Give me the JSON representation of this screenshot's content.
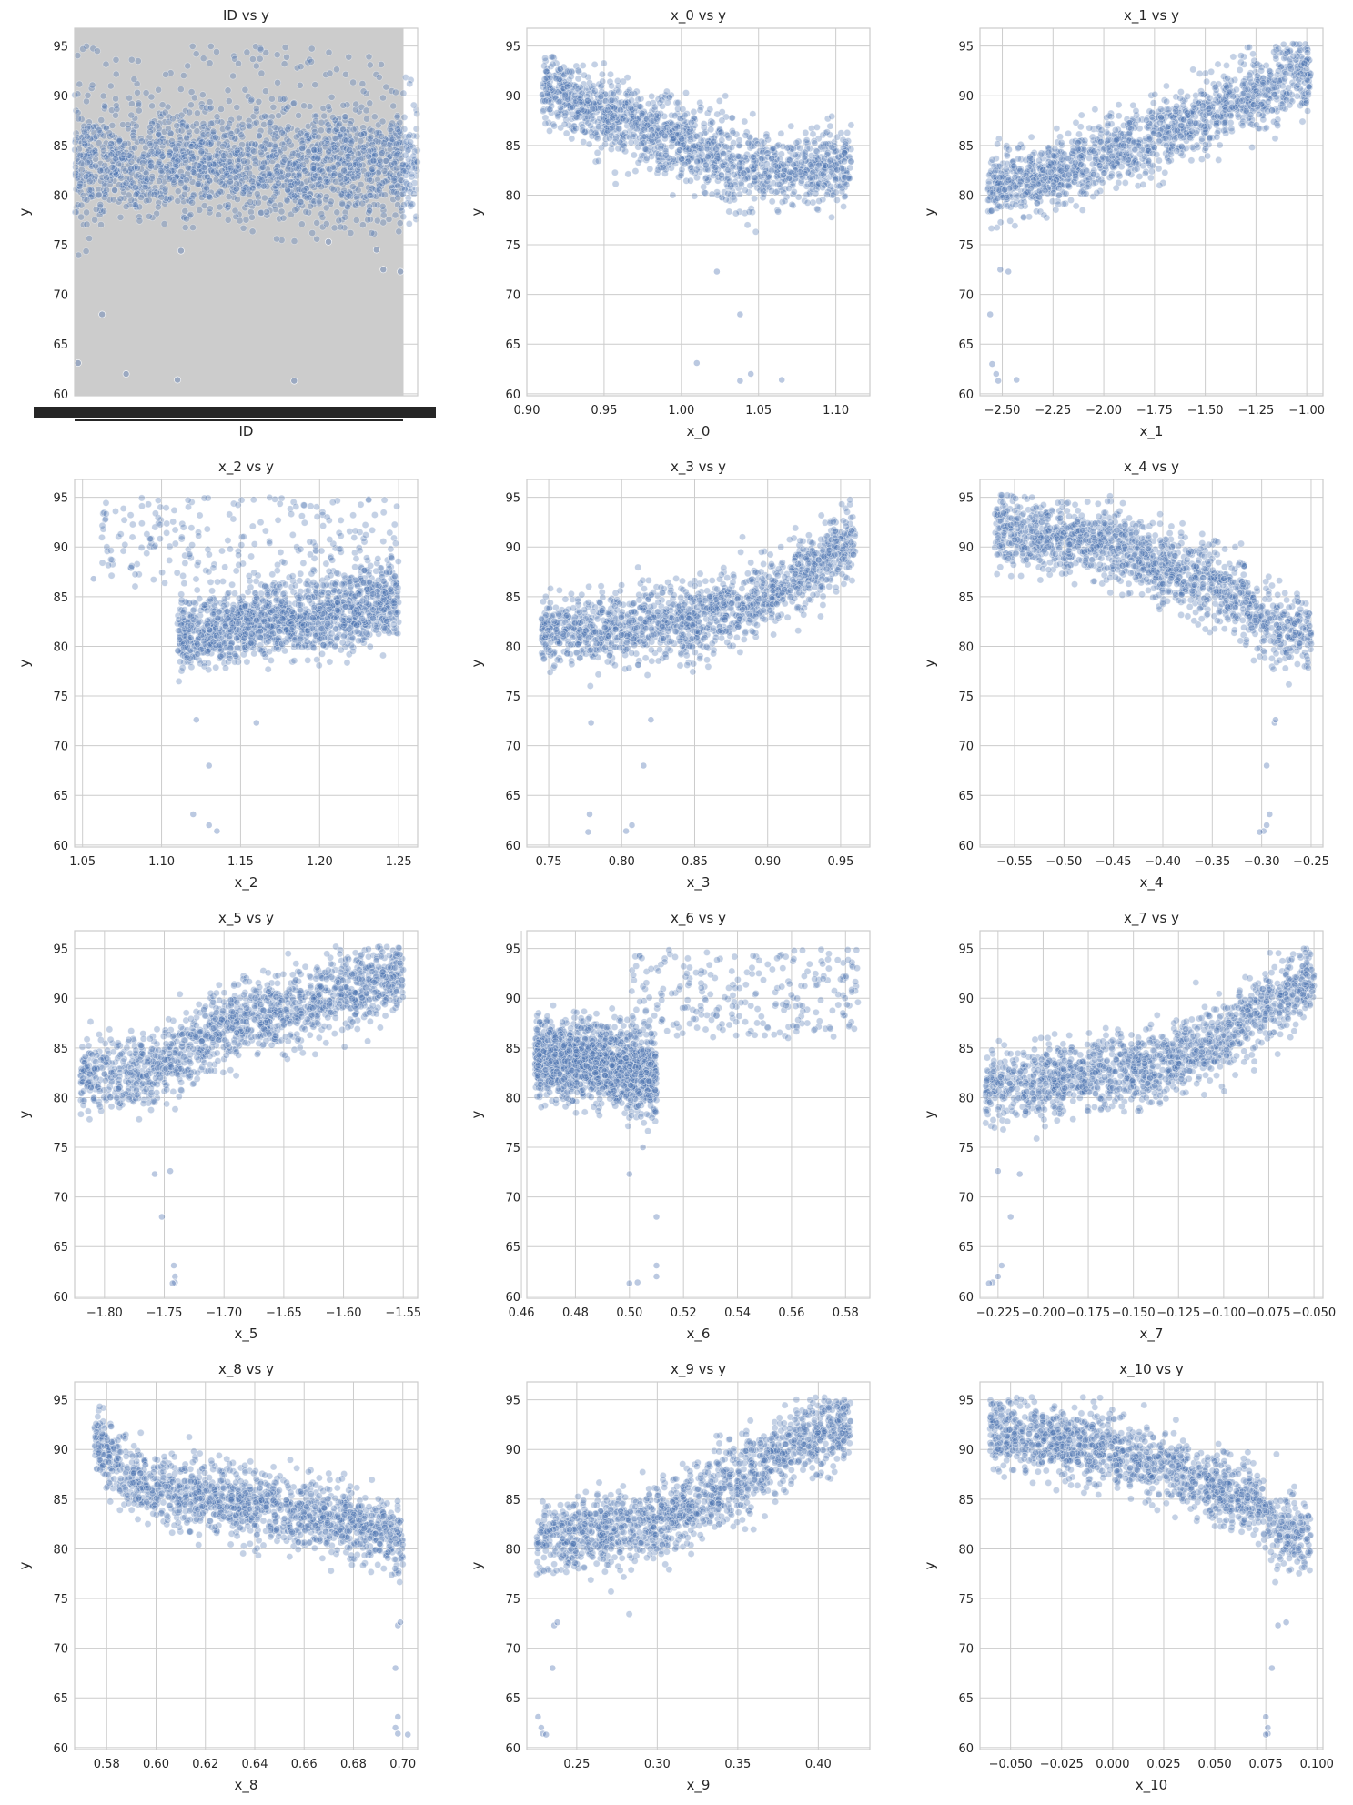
{
  "chart_data": [
    {
      "type": "scatter",
      "title": "ID vs y",
      "xlabel": "ID",
      "ylabel": "y",
      "x_tick_values": [],
      "x_tick_labels": [],
      "y_ticks": [
        60,
        65,
        70,
        75,
        80,
        85,
        90,
        95
      ],
      "xlim": [
        0,
        100
      ],
      "ylim": [
        59.8,
        96.8
      ],
      "grid": true,
      "legend": "none",
      "categorical_x": true,
      "profile": {
        "kind": "band",
        "xr": [
          0,
          100
        ],
        "spread": [
          78,
          88
        ],
        "noise": [
          77,
          95
        ]
      },
      "outliers": [
        [
          1,
          63.1
        ],
        [
          8,
          68
        ],
        [
          15,
          62
        ],
        [
          30,
          61.4
        ],
        [
          64,
          61.3
        ],
        [
          88,
          74.5
        ],
        [
          90,
          72.5
        ],
        [
          95,
          72.3
        ],
        [
          31,
          74.4
        ],
        [
          74,
          75.3
        ]
      ]
    },
    {
      "type": "scatter",
      "title": "x_0 vs y",
      "xlabel": "x_0",
      "ylabel": "y",
      "x_tick_values": [
        0.9,
        0.95,
        1.0,
        1.05,
        1.1
      ],
      "x_tick_labels": [
        "0.90",
        "0.95",
        "1.00",
        "1.05",
        "1.10"
      ],
      "y_ticks": [
        60,
        65,
        70,
        75,
        80,
        85,
        90,
        95
      ],
      "xlim": [
        0.9,
        1.122
      ],
      "ylim": [
        59.8,
        96.8
      ],
      "grid": true,
      "legend": "none",
      "profile": {
        "kind": "curve",
        "xr": [
          0.91,
          1.11
        ],
        "pts": [
          [
            0.91,
            91
          ],
          [
            0.95,
            88
          ],
          [
            1.0,
            85.5
          ],
          [
            1.03,
            83
          ],
          [
            1.06,
            82.5
          ],
          [
            1.11,
            83
          ]
        ],
        "spread": 3.5
      },
      "outliers": [
        [
          1.01,
          63.1
        ],
        [
          1.038,
          61.3
        ],
        [
          1.045,
          62
        ],
        [
          1.065,
          61.4
        ],
        [
          1.038,
          68
        ],
        [
          1.023,
          72.3
        ]
      ]
    },
    {
      "type": "scatter",
      "title": "x_1 vs y",
      "xlabel": "x_1",
      "ylabel": "y",
      "x_tick_values": [
        -2.5,
        -2.25,
        -2.0,
        -1.75,
        -1.5,
        -1.25,
        -1.0
      ],
      "x_tick_labels": [
        "−2.50",
        "−2.25",
        "−2.00",
        "−1.75",
        "−1.50",
        "−1.25",
        "−1.00"
      ],
      "y_ticks": [
        60,
        65,
        70,
        75,
        80,
        85,
        90,
        95
      ],
      "xlim": [
        -2.61,
        -0.92
      ],
      "ylim": [
        59.8,
        96.8
      ],
      "grid": true,
      "legend": "none",
      "profile": {
        "kind": "curve",
        "xr": [
          -2.57,
          -0.98
        ],
        "pts": [
          [
            -2.57,
            80.5
          ],
          [
            -2.3,
            82
          ],
          [
            -2.0,
            84
          ],
          [
            -1.7,
            86
          ],
          [
            -1.4,
            89
          ],
          [
            -1.0,
            92.5
          ]
        ],
        "spread": 3.2
      },
      "outliers": [
        [
          -2.55,
          63
        ],
        [
          -2.53,
          62
        ],
        [
          -2.52,
          61.3
        ],
        [
          -2.43,
          61.4
        ],
        [
          -2.56,
          68
        ],
        [
          -2.51,
          72.5
        ],
        [
          -2.47,
          72.3
        ]
      ]
    },
    {
      "type": "scatter",
      "title": "x_2 vs y",
      "xlabel": "x_2",
      "ylabel": "y",
      "x_tick_values": [
        1.05,
        1.1,
        1.15,
        1.2,
        1.25
      ],
      "x_tick_labels": [
        "1.05",
        "1.10",
        "1.15",
        "1.20",
        "1.25"
      ],
      "y_ticks": [
        60,
        65,
        70,
        75,
        80,
        85,
        90,
        95
      ],
      "xlim": [
        1.045,
        1.262
      ],
      "ylim": [
        59.8,
        96.8
      ],
      "grid": true,
      "legend": "none",
      "profile": {
        "kind": "curve",
        "xr": [
          1.11,
          1.25
        ],
        "pts": [
          [
            1.11,
            81
          ],
          [
            1.15,
            82
          ],
          [
            1.2,
            83
          ],
          [
            1.25,
            84.5
          ]
        ],
        "spread": 3.2
      },
      "scatter_region": {
        "xr": [
          1.06,
          1.25
        ],
        "yr": [
          86,
          95
        ]
      },
      "outliers": [
        [
          1.12,
          63.1
        ],
        [
          1.13,
          62
        ],
        [
          1.135,
          61.4
        ],
        [
          1.13,
          68
        ],
        [
          1.122,
          72.6
        ],
        [
          1.16,
          72.3
        ],
        [
          1.057,
          86.8
        ]
      ]
    },
    {
      "type": "scatter",
      "title": "x_3 vs y",
      "xlabel": "x_3",
      "ylabel": "y",
      "x_tick_values": [
        0.75,
        0.8,
        0.85,
        0.9,
        0.95
      ],
      "x_tick_labels": [
        "0.75",
        "0.80",
        "0.85",
        "0.90",
        "0.95"
      ],
      "y_ticks": [
        60,
        65,
        70,
        75,
        80,
        85,
        90,
        95
      ],
      "xlim": [
        0.735,
        0.97
      ],
      "ylim": [
        59.8,
        96.8
      ],
      "grid": true,
      "legend": "none",
      "profile": {
        "kind": "curve",
        "xr": [
          0.745,
          0.96
        ],
        "pts": [
          [
            0.745,
            81.5
          ],
          [
            0.8,
            81.8
          ],
          [
            0.85,
            82.5
          ],
          [
            0.9,
            85
          ],
          [
            0.93,
            88
          ],
          [
            0.96,
            91
          ]
        ],
        "spread": 3.3
      },
      "outliers": [
        [
          0.778,
          63.1
        ],
        [
          0.807,
          62
        ],
        [
          0.803,
          61.4
        ],
        [
          0.777,
          61.3
        ],
        [
          0.815,
          68
        ],
        [
          0.779,
          72.3
        ],
        [
          0.82,
          72.6
        ]
      ]
    },
    {
      "type": "scatter",
      "title": "x_4 vs y",
      "xlabel": "x_4",
      "ylabel": "y",
      "x_tick_values": [
        -0.55,
        -0.5,
        -0.45,
        -0.4,
        -0.35,
        -0.3,
        -0.25
      ],
      "x_tick_labels": [
        "−0.55",
        "−0.50",
        "−0.45",
        "−0.40",
        "−0.35",
        "−0.30",
        "−0.25"
      ],
      "y_ticks": [
        60,
        65,
        70,
        75,
        80,
        85,
        90,
        95
      ],
      "xlim": [
        -0.585,
        -0.238
      ],
      "ylim": [
        59.8,
        96.8
      ],
      "grid": true,
      "legend": "none",
      "profile": {
        "kind": "curve",
        "xr": [
          -0.57,
          -0.25
        ],
        "pts": [
          [
            -0.57,
            92
          ],
          [
            -0.45,
            90
          ],
          [
            -0.38,
            87.5
          ],
          [
            -0.32,
            85
          ],
          [
            -0.3,
            82
          ],
          [
            -0.25,
            81
          ]
        ],
        "spread": 3.3
      },
      "outliers": [
        [
          -0.292,
          63.1
        ],
        [
          -0.295,
          62
        ],
        [
          -0.298,
          61.4
        ],
        [
          -0.302,
          61.3
        ],
        [
          -0.295,
          68
        ],
        [
          -0.287,
          72.3
        ],
        [
          -0.286,
          72.6
        ]
      ]
    },
    {
      "type": "scatter",
      "title": "x_5 vs y",
      "xlabel": "x_5",
      "ylabel": "y",
      "x_tick_values": [
        -1.8,
        -1.75,
        -1.7,
        -1.65,
        -1.6,
        -1.55
      ],
      "x_tick_labels": [
        "−1.80",
        "−1.75",
        "−1.70",
        "−1.65",
        "−1.60",
        "−1.55"
      ],
      "y_ticks": [
        60,
        65,
        70,
        75,
        80,
        85,
        90,
        95
      ],
      "xlim": [
        -1.825,
        -1.538
      ],
      "ylim": [
        59.8,
        96.8
      ],
      "grid": true,
      "legend": "none",
      "profile": {
        "kind": "curve",
        "xr": [
          -1.82,
          -1.55
        ],
        "pts": [
          [
            -1.82,
            82
          ],
          [
            -1.77,
            82.5
          ],
          [
            -1.74,
            84
          ],
          [
            -1.7,
            87
          ],
          [
            -1.65,
            89
          ],
          [
            -1.55,
            92.5
          ]
        ],
        "spread": 3.4
      },
      "outliers": [
        [
          -1.742,
          63.1
        ],
        [
          -1.741,
          62
        ],
        [
          -1.741,
          61.4
        ],
        [
          -1.743,
          61.3
        ],
        [
          -1.752,
          68
        ],
        [
          -1.758,
          72.3
        ],
        [
          -1.745,
          72.6
        ]
      ]
    },
    {
      "type": "scatter",
      "title": "x_6 vs y",
      "xlabel": "x_6",
      "ylabel": "y",
      "x_tick_values": [
        0.46,
        0.48,
        0.5,
        0.52,
        0.54,
        0.56,
        0.58
      ],
      "x_tick_labels": [
        "0.46",
        "0.48",
        "0.50",
        "0.52",
        "0.54",
        "0.56",
        "0.58"
      ],
      "y_ticks": [
        60,
        65,
        70,
        75,
        80,
        85,
        90,
        95
      ],
      "xlim": [
        0.462,
        0.589
      ],
      "ylim": [
        59.8,
        96.8
      ],
      "grid": true,
      "legend": "none",
      "profile": {
        "kind": "curve",
        "xr": [
          0.465,
          0.51
        ],
        "pts": [
          [
            0.465,
            84
          ],
          [
            0.49,
            83.5
          ],
          [
            0.51,
            82
          ]
        ],
        "spread": 3.5
      },
      "scatter_region": {
        "xr": [
          0.5,
          0.585
        ],
        "yr": [
          86,
          95
        ]
      },
      "outliers": [
        [
          0.51,
          63.1
        ],
        [
          0.51,
          62
        ],
        [
          0.503,
          61.4
        ],
        [
          0.5,
          61.3
        ],
        [
          0.51,
          68
        ],
        [
          0.5,
          72.3
        ],
        [
          0.505,
          75
        ]
      ]
    },
    {
      "type": "scatter",
      "title": "x_7 vs y",
      "xlabel": "x_7",
      "ylabel": "y",
      "x_tick_values": [
        -0.225,
        -0.2,
        -0.175,
        -0.15,
        -0.125,
        -0.1,
        -0.075,
        -0.05
      ],
      "x_tick_labels": [
        "−0.225",
        "−0.200",
        "−0.175",
        "−0.150",
        "−0.125",
        "−0.100",
        "−0.075",
        "−0.050"
      ],
      "y_ticks": [
        60,
        65,
        70,
        75,
        80,
        85,
        90,
        95
      ],
      "xlim": [
        -0.235,
        -0.045
      ],
      "ylim": [
        59.8,
        96.8
      ],
      "grid": true,
      "legend": "none",
      "profile": {
        "kind": "curve",
        "xr": [
          -0.232,
          -0.05
        ],
        "pts": [
          [
            -0.232,
            81
          ],
          [
            -0.18,
            82
          ],
          [
            -0.13,
            83.5
          ],
          [
            -0.1,
            86
          ],
          [
            -0.07,
            90
          ],
          [
            -0.05,
            92
          ]
        ],
        "spread": 3.3
      },
      "outliers": [
        [
          -0.223,
          63.1
        ],
        [
          -0.225,
          62
        ],
        [
          -0.228,
          61.4
        ],
        [
          -0.23,
          61.3
        ],
        [
          -0.218,
          68
        ],
        [
          -0.213,
          72.3
        ],
        [
          -0.225,
          72.6
        ]
      ]
    },
    {
      "type": "scatter",
      "title": "x_8 vs y",
      "xlabel": "x_8",
      "ylabel": "y",
      "x_tick_values": [
        0.58,
        0.6,
        0.62,
        0.64,
        0.66,
        0.68,
        0.7
      ],
      "x_tick_labels": [
        "0.58",
        "0.60",
        "0.62",
        "0.64",
        "0.66",
        "0.68",
        "0.70"
      ],
      "y_ticks": [
        60,
        65,
        70,
        75,
        80,
        85,
        90,
        95
      ],
      "xlim": [
        0.567,
        0.706
      ],
      "ylim": [
        59.8,
        96.8
      ],
      "grid": true,
      "legend": "none",
      "profile": {
        "kind": "curve",
        "xr": [
          0.575,
          0.7
        ],
        "pts": [
          [
            0.575,
            91
          ],
          [
            0.59,
            87
          ],
          [
            0.62,
            85
          ],
          [
            0.66,
            83.5
          ],
          [
            0.69,
            82
          ],
          [
            0.7,
            80.5
          ]
        ],
        "spread": 3.2
      },
      "outliers": [
        [
          0.698,
          63.1
        ],
        [
          0.697,
          62
        ],
        [
          0.698,
          61.4
        ],
        [
          0.702,
          61.3
        ],
        [
          0.697,
          68
        ],
        [
          0.698,
          72.3
        ],
        [
          0.699,
          72.6
        ]
      ]
    },
    {
      "type": "scatter",
      "title": "x_9 vs y",
      "xlabel": "x_9",
      "ylabel": "y",
      "x_tick_values": [
        0.25,
        0.3,
        0.35,
        0.4
      ],
      "x_tick_labels": [
        "0.25",
        "0.30",
        "0.35",
        "0.40"
      ],
      "y_ticks": [
        60,
        65,
        70,
        75,
        80,
        85,
        90,
        95
      ],
      "xlim": [
        0.219,
        0.432
      ],
      "ylim": [
        59.8,
        96.8
      ],
      "grid": true,
      "legend": "none",
      "profile": {
        "kind": "curve",
        "xr": [
          0.225,
          0.42
        ],
        "pts": [
          [
            0.225,
            81
          ],
          [
            0.28,
            82
          ],
          [
            0.32,
            84
          ],
          [
            0.36,
            88
          ],
          [
            0.39,
            91
          ],
          [
            0.42,
            92.5
          ]
        ],
        "spread": 3.3
      },
      "outliers": [
        [
          0.226,
          63.1
        ],
        [
          0.228,
          62
        ],
        [
          0.229,
          61.4
        ],
        [
          0.231,
          61.3
        ],
        [
          0.235,
          68
        ],
        [
          0.236,
          72.3
        ],
        [
          0.238,
          72.6
        ]
      ]
    },
    {
      "type": "scatter",
      "title": "x_10 vs y",
      "xlabel": "x_10",
      "ylabel": "y",
      "x_tick_values": [
        -0.05,
        -0.025,
        0.0,
        0.025,
        0.05,
        0.075,
        0.1
      ],
      "x_tick_labels": [
        "−0.050",
        "−0.025",
        "0.000",
        "0.025",
        "0.050",
        "0.075",
        "0.100"
      ],
      "y_ticks": [
        60,
        65,
        70,
        75,
        80,
        85,
        90,
        95
      ],
      "xlim": [
        -0.065,
        0.103
      ],
      "ylim": [
        59.8,
        96.8
      ],
      "grid": true,
      "legend": "none",
      "profile": {
        "kind": "curve",
        "xr": [
          -0.06,
          0.097
        ],
        "pts": [
          [
            -0.06,
            92
          ],
          [
            0.0,
            90
          ],
          [
            0.04,
            87
          ],
          [
            0.07,
            84.5
          ],
          [
            0.08,
            82
          ],
          [
            0.097,
            81
          ]
        ],
        "spread": 3.2
      },
      "outliers": [
        [
          0.075,
          63.1
        ],
        [
          0.076,
          62
        ],
        [
          0.076,
          61.4
        ],
        [
          0.075,
          61.3
        ],
        [
          0.078,
          68
        ],
        [
          0.081,
          72.3
        ],
        [
          0.085,
          72.6
        ]
      ]
    }
  ],
  "colors": {
    "marker": "#4c72b0",
    "marker_light": "#b8c6e2",
    "grid": "#cccccc",
    "text": "#262626",
    "id_background": "#cccccc"
  }
}
